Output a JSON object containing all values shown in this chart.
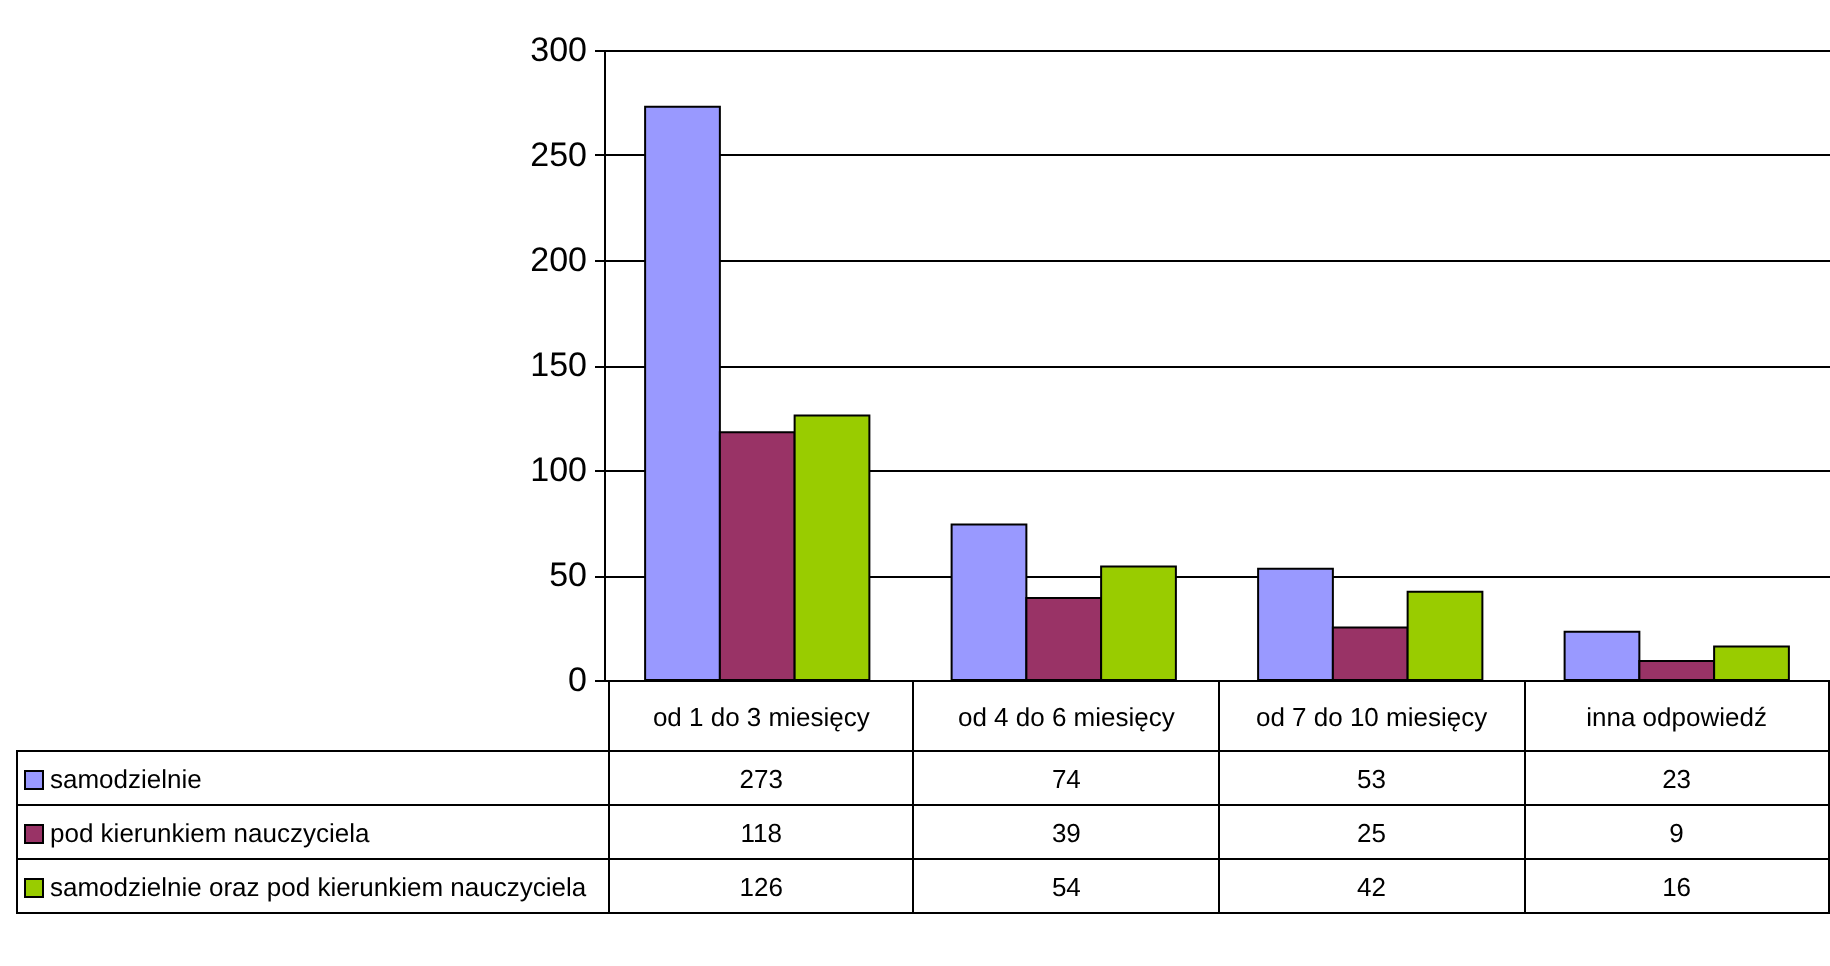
{
  "chart_data": {
    "type": "bar",
    "categories": [
      "od 1 do 3 miesięcy",
      "od 4 do 6 miesięcy",
      "od  7 do 10 miesięcy",
      "inna odpowiedź"
    ],
    "series": [
      {
        "name": "samodzielnie",
        "color": "#9999ff",
        "values": [
          273,
          74,
          53,
          23
        ]
      },
      {
        "name": "pod kierunkiem nauczyciela",
        "color": "#993366",
        "values": [
          118,
          39,
          25,
          9
        ]
      },
      {
        "name": "samodzielnie oraz pod kierunkiem nauczyciela",
        "color": "#99cc00",
        "values": [
          126,
          54,
          42,
          16
        ]
      }
    ],
    "ylim": [
      0,
      300
    ],
    "yticks": [
      0,
      50,
      100,
      150,
      200,
      250,
      300
    ],
    "grid": "y",
    "legend": "bottom",
    "data_labels": true
  }
}
